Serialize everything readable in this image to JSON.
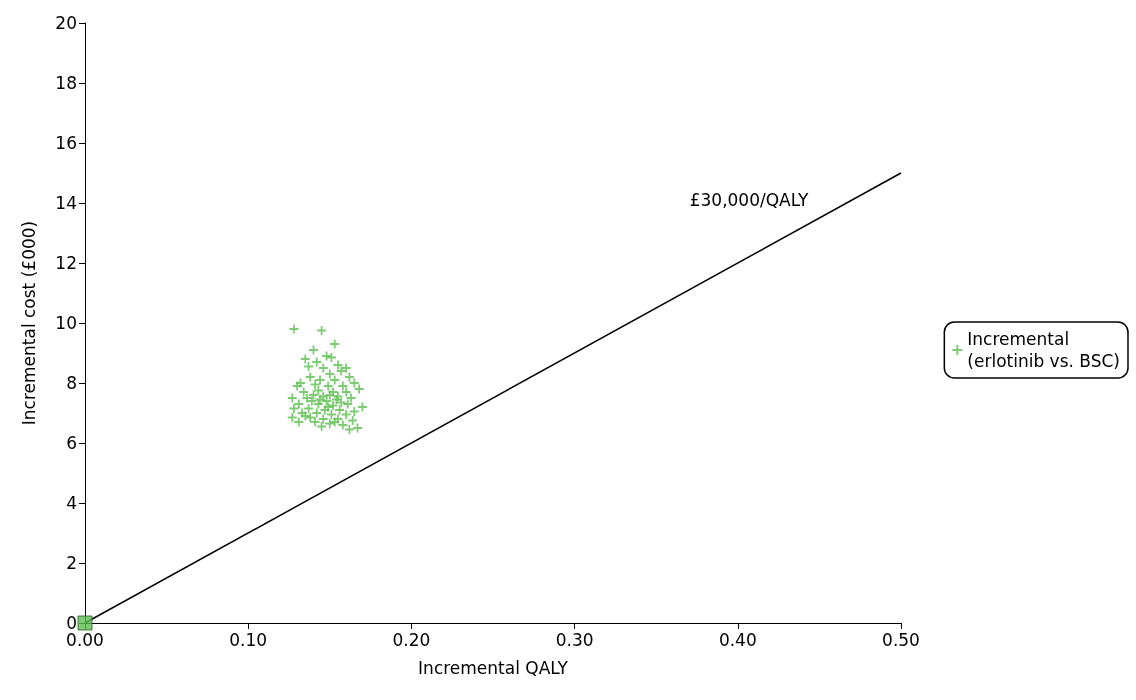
{
  "chart_data": {
    "type": "scatter",
    "xlabel": "Incremental QALY",
    "ylabel": "Incremental cost (£000)",
    "xlim": [
      0,
      0.5
    ],
    "xticks": [
      {
        "value": 0,
        "label": "0.00"
      },
      {
        "value": 0.1,
        "label": "0.10"
      },
      {
        "value": 0.2,
        "label": "0.20"
      },
      {
        "value": 0.3,
        "label": "0.30"
      },
      {
        "value": 0.4,
        "label": "0.40"
      },
      {
        "value": 0.5,
        "label": "0.50"
      }
    ],
    "ylim": [
      0,
      20
    ],
    "yticks": [
      0,
      2,
      4,
      6,
      8,
      10,
      12,
      14,
      16,
      18,
      20
    ],
    "grid": false,
    "legend": "right",
    "annotations": [
      "£30,000/QALY"
    ],
    "series": [
      {
        "name": "Incremental\n(erlotinib vs. BSC)",
        "marker": "cross",
        "color": "#5cbf50",
        "x": [
          0.128,
          0.145,
          0.153,
          0.14,
          0.135,
          0.148,
          0.151,
          0.142,
          0.155,
          0.16,
          0.137,
          0.146,
          0.157,
          0.15,
          0.132,
          0.162,
          0.138,
          0.144,
          0.153,
          0.165,
          0.13,
          0.141,
          0.149,
          0.158,
          0.168,
          0.134,
          0.143,
          0.152,
          0.16,
          0.127,
          0.136,
          0.146,
          0.155,
          0.163,
          0.139,
          0.148,
          0.157,
          0.131,
          0.143,
          0.152,
          0.161,
          0.17,
          0.128,
          0.137,
          0.147,
          0.156,
          0.165,
          0.133,
          0.142,
          0.151,
          0.16,
          0.127,
          0.138,
          0.146,
          0.155,
          0.164,
          0.131,
          0.141,
          0.15,
          0.158,
          0.145,
          0.162,
          0.167,
          0.153,
          0.135,
          0.149,
          0.144,
          0.154,
          0.14,
          0.15
        ],
        "values": [
          9.8,
          9.75,
          9.3,
          9.1,
          8.8,
          8.9,
          8.85,
          8.7,
          8.6,
          8.5,
          8.55,
          8.5,
          8.4,
          8.3,
          8.0,
          8.2,
          8.2,
          8.1,
          8.1,
          8.0,
          7.9,
          7.95,
          7.9,
          7.9,
          7.8,
          7.7,
          7.75,
          7.7,
          7.7,
          7.5,
          7.5,
          7.55,
          7.55,
          7.5,
          7.4,
          7.4,
          7.35,
          7.3,
          7.3,
          7.25,
          7.3,
          7.2,
          7.15,
          7.15,
          7.1,
          7.1,
          7.05,
          7.0,
          7.0,
          6.95,
          6.95,
          6.85,
          6.85,
          6.8,
          6.8,
          6.75,
          6.7,
          6.7,
          6.65,
          6.6,
          6.55,
          6.45,
          6.5,
          6.7,
          6.9,
          7.2,
          7.45,
          7.45,
          7.6,
          7.6
        ]
      },
      {
        "marker": "square",
        "color": "#5cbf50",
        "x": [
          0
        ],
        "values": [
          0
        ]
      },
      {
        "type": "line",
        "marker": "none",
        "line_style": "solid",
        "color": "#000000",
        "x": [
          0,
          0.5
        ],
        "values": [
          0,
          15
        ]
      }
    ]
  }
}
